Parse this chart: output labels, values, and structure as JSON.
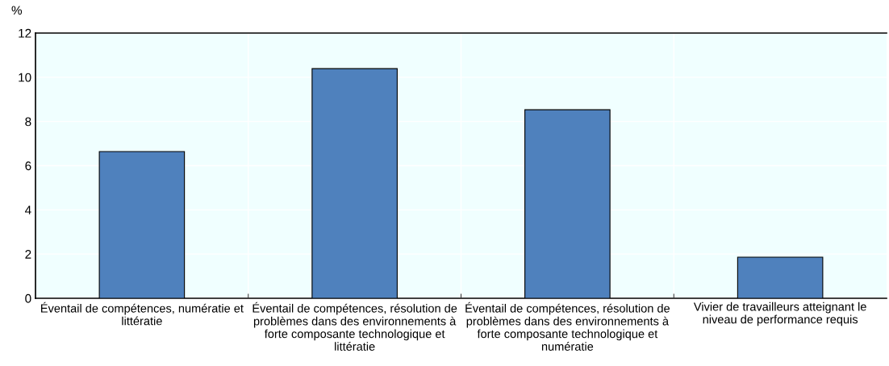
{
  "chart_data": {
    "type": "bar",
    "ylabel": "%",
    "categories": [
      "Éventail de compétences, numératie et\nlittératie",
      "Éventail de compétences, résolution de\nproblèmes dans des environnements à\nforte composante technologique et\nlittératie",
      "Éventail de compétences, résolution de\nproblèmes dans des environnements à\nforte composante technologique et\nnumératie",
      "Vivier de travailleurs atteignant le\nniveau de performance requis"
    ],
    "values": [
      6.64,
      10.39,
      8.53,
      1.86
    ],
    "color": "#4f81bd",
    "ylim": [
      0,
      12
    ],
    "yticks": [
      0,
      2,
      4,
      6,
      8,
      10,
      12
    ],
    "grid": true
  }
}
